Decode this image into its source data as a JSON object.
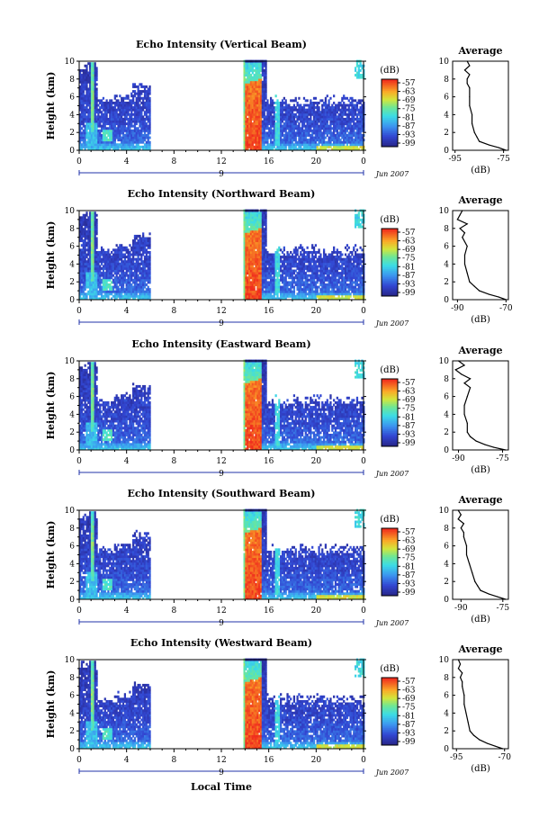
{
  "figure": {
    "x_axis_label": "Local Time",
    "y_axis_label": "Height (km)",
    "date_label": "Jun 2007",
    "day_label": "9",
    "colorbar_unit": "(dB)",
    "colorbar_ticks": [
      "-57",
      "-63",
      "-69",
      "-75",
      "-81",
      "-87",
      "-93",
      "-99"
    ],
    "average_title": "Average",
    "average_unit": "(dB)"
  },
  "chart_data": [
    {
      "type": "heatmap",
      "title": "Echo Intensity (Vertical Beam)",
      "xlabel": "Local Time",
      "ylabel": "Height (km)",
      "x_ticks": [
        "0",
        "4",
        "8",
        "12",
        "16",
        "20",
        "0"
      ],
      "y_ticks": [
        "0",
        "2",
        "4",
        "6",
        "8",
        "10"
      ],
      "xlim": [
        0,
        24
      ],
      "ylim": [
        0,
        10
      ],
      "colorbar_range_dB": [
        -99,
        -57
      ],
      "no_data_interval_hours": [
        6,
        13.8
      ],
      "average": {
        "title": "Average",
        "xlabel": "(dB)",
        "x_ticks": [
          "-95",
          "-75"
        ],
        "xlim": [
          -96,
          -73
        ],
        "ylim": [
          0,
          10
        ],
        "height_km": [
          0,
          0.3,
          0.6,
          1,
          1.5,
          2,
          3,
          4,
          5,
          6,
          7,
          7.5,
          8,
          8.5,
          9,
          9.5,
          10
        ],
        "dB": [
          -74,
          -77,
          -81,
          -85,
          -86,
          -87,
          -88,
          -88,
          -89,
          -89,
          -89,
          -90,
          -90,
          -89,
          -91,
          -89,
          -90
        ]
      }
    },
    {
      "type": "heatmap",
      "title": "Echo Intensity (Northward Beam)",
      "xlabel": "Local Time",
      "ylabel": "Height (km)",
      "x_ticks": [
        "0",
        "4",
        "8",
        "12",
        "16",
        "20",
        "0"
      ],
      "y_ticks": [
        "0",
        "2",
        "4",
        "6",
        "8",
        "10"
      ],
      "xlim": [
        0,
        24
      ],
      "ylim": [
        0,
        10
      ],
      "colorbar_range_dB": [
        -99,
        -57
      ],
      "no_data_interval_hours": [
        6,
        13.8
      ],
      "average": {
        "title": "Average",
        "xlabel": "(dB)",
        "x_ticks": [
          "-90",
          "-70"
        ],
        "xlim": [
          -92,
          -69
        ],
        "ylim": [
          0,
          10
        ],
        "height_km": [
          0,
          0.3,
          0.6,
          1,
          1.5,
          2,
          3,
          4,
          5,
          6,
          7,
          7.5,
          8,
          8.5,
          9,
          9.5,
          10
        ],
        "dB": [
          -70,
          -73,
          -77,
          -81,
          -83,
          -85,
          -86,
          -87,
          -87,
          -86,
          -88,
          -87,
          -89,
          -86,
          -90,
          -89,
          -88
        ]
      }
    },
    {
      "type": "heatmap",
      "title": "Echo Intensity (Eastward Beam)",
      "xlabel": "Local Time",
      "ylabel": "Height (km)",
      "x_ticks": [
        "0",
        "4",
        "8",
        "12",
        "16",
        "20",
        "0"
      ],
      "y_ticks": [
        "0",
        "2",
        "4",
        "6",
        "8",
        "10"
      ],
      "xlim": [
        0,
        24
      ],
      "ylim": [
        0,
        10
      ],
      "colorbar_range_dB": [
        -99,
        -57
      ],
      "no_data_interval_hours": [
        6,
        13.8
      ],
      "average": {
        "title": "Average",
        "xlabel": "(dB)",
        "x_ticks": [
          "-90",
          "-75"
        ],
        "xlim": [
          -92,
          -73
        ],
        "ylim": [
          0,
          10
        ],
        "height_km": [
          0,
          0.3,
          0.6,
          1,
          1.5,
          2,
          3,
          4,
          5,
          6,
          7,
          7.5,
          8,
          8.5,
          9,
          9.5,
          10
        ],
        "dB": [
          -74,
          -78,
          -81,
          -84,
          -86,
          -87,
          -87,
          -88,
          -88,
          -87,
          -86,
          -88,
          -86,
          -89,
          -91,
          -88,
          -90
        ]
      }
    },
    {
      "type": "heatmap",
      "title": "Echo Intensity (Southward Beam)",
      "xlabel": "Local Time",
      "ylabel": "Height (km)",
      "x_ticks": [
        "0",
        "4",
        "8",
        "12",
        "16",
        "20",
        "0"
      ],
      "y_ticks": [
        "0",
        "2",
        "4",
        "6",
        "8",
        "10"
      ],
      "xlim": [
        0,
        24
      ],
      "ylim": [
        0,
        10
      ],
      "colorbar_range_dB": [
        -99,
        -57
      ],
      "no_data_interval_hours": [
        6,
        13.8
      ],
      "average": {
        "title": "Average",
        "xlabel": "(dB)",
        "x_ticks": [
          "-90",
          "-75"
        ],
        "xlim": [
          -93,
          -73
        ],
        "ylim": [
          0,
          10
        ],
        "height_km": [
          0,
          0.3,
          0.6,
          1,
          1.5,
          2,
          3,
          4,
          5,
          6,
          7,
          7.5,
          8,
          8.5,
          9,
          9.5,
          10
        ],
        "dB": [
          -74,
          -77,
          -80,
          -83,
          -84,
          -85,
          -86,
          -87,
          -88,
          -88,
          -89,
          -89,
          -90,
          -89,
          -91,
          -90,
          -91
        ]
      }
    },
    {
      "type": "heatmap",
      "title": "Echo Intensity (Westward Beam)",
      "xlabel": "Local Time",
      "ylabel": "Height (km)",
      "x_ticks": [
        "0",
        "4",
        "8",
        "12",
        "16",
        "20",
        "0"
      ],
      "y_ticks": [
        "0",
        "2",
        "4",
        "6",
        "8",
        "10"
      ],
      "xlim": [
        0,
        24
      ],
      "ylim": [
        0,
        10
      ],
      "colorbar_range_dB": [
        -99,
        -57
      ],
      "no_data_interval_hours": [
        6,
        13.8
      ],
      "average": {
        "title": "Average",
        "xlabel": "(dB)",
        "x_ticks": [
          "-95",
          "-70"
        ],
        "xlim": [
          -97,
          -68
        ],
        "ylim": [
          0,
          10
        ],
        "height_km": [
          0,
          0.3,
          0.6,
          1,
          1.5,
          2,
          3,
          4,
          5,
          6,
          7,
          7.5,
          8,
          8.5,
          9,
          9.5,
          10
        ],
        "dB": [
          -71,
          -75,
          -79,
          -83,
          -86,
          -88,
          -89,
          -90,
          -91,
          -91,
          -92,
          -92,
          -93,
          -92,
          -94,
          -93,
          -94
        ]
      }
    }
  ]
}
